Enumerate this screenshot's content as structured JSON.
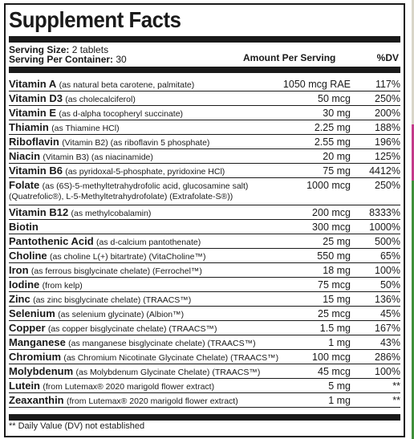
{
  "title": "Supplement Facts",
  "serving_size_label": "Serving Size:",
  "serving_size_value": "2 tablets",
  "servings_per_container_label": "Serving Per Container:",
  "servings_per_container_value": "30",
  "col_amount": "Amount Per Serving",
  "col_dv": "%DV",
  "rows": [
    {
      "name": "Vitamin A",
      "desc": "(as natural beta carotene, palmitate)",
      "amount": "1050 mcg RAE",
      "dv": "117%"
    },
    {
      "name": "Vitamin D3",
      "desc": "(as cholecalciferol)",
      "amount": "50 mcg",
      "dv": "250%"
    },
    {
      "name": "Vitamin E",
      "desc": "(as d-alpha tocopheryl succinate)",
      "amount": "30 mg",
      "dv": "200%"
    },
    {
      "name": "Thiamin",
      "desc": "(as Thiamine HCl)",
      "amount": "2.25 mg",
      "dv": "188%"
    },
    {
      "name": "Riboflavin",
      "desc": "(Vitamin B2) (as riboflavin 5 phosphate)",
      "amount": "2.55 mg",
      "dv": "196%"
    },
    {
      "name": "Niacin",
      "desc": "(Vitamin B3) (as niacinamide)",
      "amount": "20 mg",
      "dv": "125%"
    },
    {
      "name": "Vitamin B6",
      "desc": "(as pyridoxal-5-phosphate, pyridoxine HCl)",
      "amount": "75 mg",
      "dv": "4412%"
    },
    {
      "name": "Folate",
      "desc": "(as (6S)-5-methyltetrahydrofolic acid, glucosamine salt)",
      "desc2": "(Quatrefolic®), L-5-Methyltetrahydrofolate) (Extrafolate-S®))",
      "amount": "1000 mcg",
      "dv": "250%"
    },
    {
      "name": "Vitamin B12",
      "desc": "(as methylcobalamin)",
      "amount": "200 mcg",
      "dv": "8333%"
    },
    {
      "name": "Biotin",
      "desc": "",
      "amount": "300 mcg",
      "dv": "1000%"
    },
    {
      "name": "Pantothenic Acid",
      "desc": "(as d-calcium pantothenate)",
      "amount": "25 mg",
      "dv": "500%"
    },
    {
      "name": "Choline",
      "desc": "(as choline L(+) bitartrate) (VitaCholine™)",
      "amount": "550 mg",
      "dv": "65%"
    },
    {
      "name": "Iron",
      "desc": "(as ferrous bisglycinate chelate) (Ferrochel™)",
      "amount": "18 mg",
      "dv": "100%"
    },
    {
      "name": "Iodine",
      "desc": "(from kelp)",
      "amount": "75 mcg",
      "dv": "50%"
    },
    {
      "name": "Zinc",
      "desc": "(as zinc bisglycinate chelate) (TRAACS™)",
      "amount": "15 mg",
      "dv": "136%"
    },
    {
      "name": "Selenium",
      "desc": "(as selenium glycinate) (Albion™)",
      "amount": "25 mcg",
      "dv": "45%"
    },
    {
      "name": "Copper",
      "desc": "(as copper bisglycinate chelate) (TRAACS™)",
      "amount": "1.5 mg",
      "dv": "167%"
    },
    {
      "name": "Manganese",
      "desc": "(as manganese bisglycinate chelate) (TRAACS™)",
      "amount": "1 mg",
      "dv": "43%"
    },
    {
      "name": "Chromium",
      "desc": "(as Chromium Nicotinate Glycinate Chelate) (TRAACS™)",
      "amount": "100 mcg",
      "dv": "286%"
    },
    {
      "name": "Molybdenum",
      "desc": "(as Molybdenum Glycinate Chelate) (TRAACS™)",
      "amount": "45 mcg",
      "dv": "100%"
    },
    {
      "name": "Lutein",
      "desc": "(from Lutemax® 2020 marigold flower extract)",
      "amount": "5 mg",
      "dv": "**"
    },
    {
      "name": "Zeaxanthin",
      "desc": "(from Lutemax® 2020 marigold flower extract)",
      "amount": "1 mg",
      "dv": "**"
    }
  ],
  "footnote": "** Daily Value (DV) not established",
  "colors": {
    "border": "#1a1a1a",
    "accent_pink": "#c23b8a",
    "accent_green": "#3f8f3a"
  }
}
